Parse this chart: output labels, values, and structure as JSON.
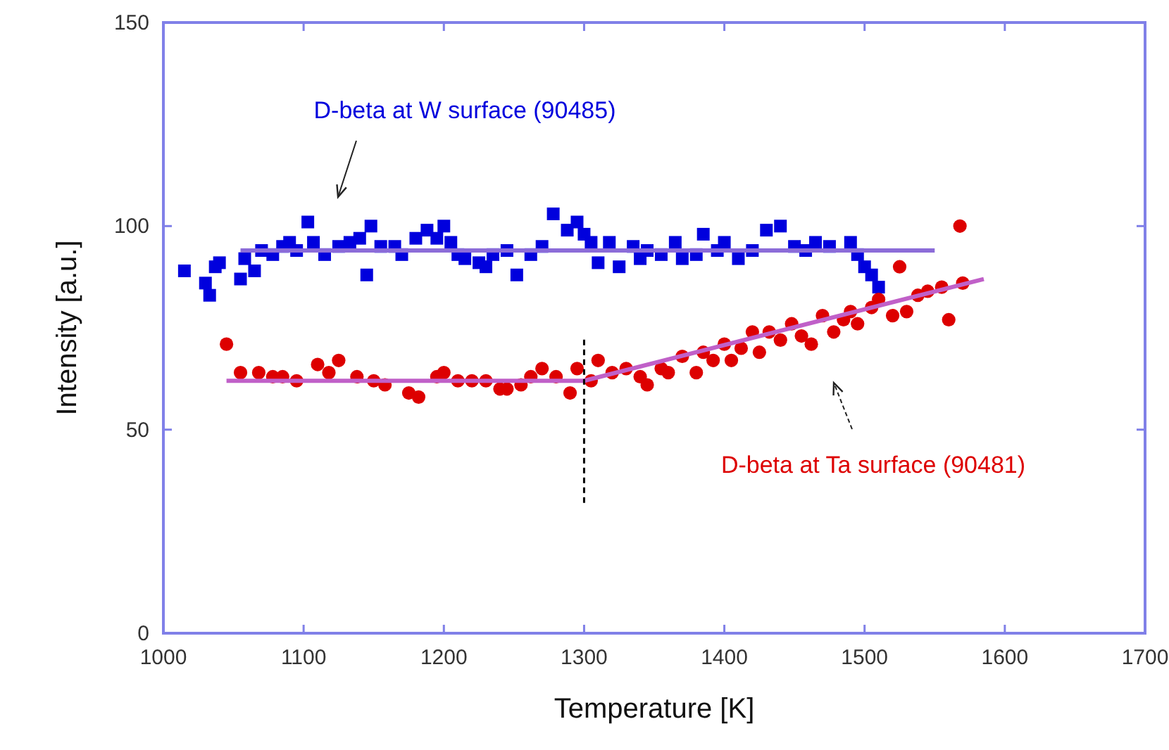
{
  "chart_data": {
    "type": "scatter",
    "xlabel": "Temperature [K]",
    "ylabel": "Intensity [a.u.]",
    "xlim": [
      1000,
      1700
    ],
    "xticks": [
      1000,
      1100,
      1200,
      1300,
      1400,
      1500,
      1600,
      1700
    ],
    "ylim": [
      0,
      150
    ],
    "yticks": [
      0,
      50,
      100,
      150
    ],
    "grid": false,
    "series": [
      {
        "marker": "square",
        "color": "#0000dd",
        "x": [
          1015,
          1030,
          1033,
          1037,
          1040,
          1055,
          1058,
          1065,
          1070,
          1078,
          1085,
          1090,
          1095,
          1103,
          1107,
          1115,
          1125,
          1133,
          1140,
          1145,
          1148,
          1155,
          1165,
          1170,
          1180,
          1188,
          1195,
          1200,
          1205,
          1210,
          1215,
          1225,
          1230,
          1235,
          1245,
          1252,
          1262,
          1270,
          1278,
          1288,
          1295,
          1300,
          1305,
          1310,
          1318,
          1325,
          1335,
          1340,
          1345,
          1355,
          1365,
          1370,
          1380,
          1385,
          1395,
          1400,
          1410,
          1420,
          1430,
          1440,
          1450,
          1458,
          1465,
          1475,
          1490,
          1495,
          1500,
          1505,
          1510
        ],
        "values": [
          89,
          86,
          83,
          90,
          91,
          87,
          92,
          89,
          94,
          93,
          95,
          96,
          94,
          101,
          96,
          93,
          95,
          96,
          97,
          88,
          100,
          95,
          95,
          93,
          97,
          99,
          97,
          100,
          96,
          93,
          92,
          91,
          90,
          93,
          94,
          88,
          93,
          95,
          103,
          99,
          101,
          98,
          96,
          91,
          96,
          90,
          95,
          92,
          94,
          93,
          96,
          92,
          93,
          98,
          94,
          96,
          92,
          94,
          99,
          100,
          95,
          94,
          96,
          95,
          96,
          93,
          90,
          88,
          85
        ]
      },
      {
        "marker": "circle",
        "color": "#dd0000",
        "x": [
          1045,
          1055,
          1068,
          1078,
          1085,
          1095,
          1110,
          1118,
          1125,
          1138,
          1150,
          1158,
          1175,
          1182,
          1195,
          1200,
          1210,
          1220,
          1230,
          1240,
          1245,
          1255,
          1262,
          1270,
          1280,
          1290,
          1295,
          1305,
          1310,
          1320,
          1330,
          1340,
          1345,
          1355,
          1360,
          1370,
          1380,
          1385,
          1392,
          1400,
          1405,
          1412,
          1420,
          1425,
          1432,
          1440,
          1448,
          1455,
          1462,
          1470,
          1478,
          1485,
          1490,
          1495,
          1505,
          1510,
          1520,
          1525,
          1530,
          1538,
          1545,
          1555,
          1560,
          1568,
          1570
        ],
        "values": [
          71,
          64,
          64,
          63,
          63,
          62,
          66,
          64,
          67,
          63,
          62,
          61,
          59,
          58,
          63,
          64,
          62,
          62,
          62,
          60,
          60,
          61,
          63,
          65,
          63,
          59,
          65,
          62,
          67,
          64,
          65,
          63,
          61,
          65,
          64,
          68,
          64,
          69,
          67,
          71,
          67,
          70,
          74,
          69,
          74,
          72,
          76,
          73,
          71,
          78,
          74,
          77,
          79,
          76,
          80,
          82,
          78,
          90,
          79,
          83,
          84,
          85,
          77,
          100,
          86
        ]
      },
      {
        "type": "line",
        "marker": "none",
        "color": "#8c6cd8",
        "x": [
          1055,
          1550
        ],
        "values": [
          94,
          94
        ]
      },
      {
        "type": "line",
        "marker": "none",
        "color": "#c060c8",
        "x": [
          1045,
          1300,
          1585
        ],
        "values": [
          62,
          62,
          87
        ]
      },
      {
        "type": "line",
        "marker": "none",
        "line_style": "dashed",
        "color": "#000000",
        "x": [
          1300,
          1300
        ],
        "values": [
          32,
          73
        ]
      }
    ],
    "annotations": [
      "D-beta at W surface (90485)",
      "D-beta at Ta surface (90481)"
    ]
  }
}
